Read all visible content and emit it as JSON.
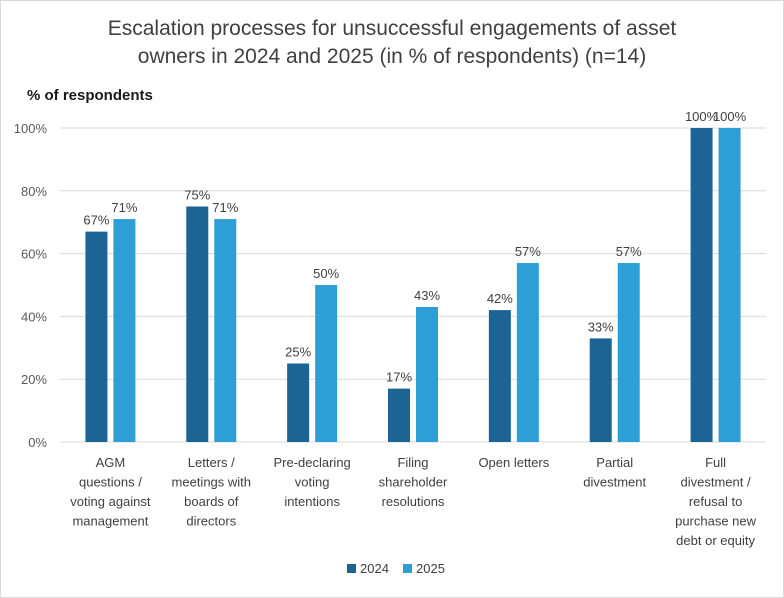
{
  "chart_data": {
    "type": "bar",
    "title_lines": [
      "Escalation processes for unsuccessful engagements of asset",
      "owners in 2024 and 2025 (in % of respondents) (n=14)"
    ],
    "ylabel": "% of respondents",
    "ylim": [
      0,
      100
    ],
    "yticks": [
      "0%",
      "20%",
      "40%",
      "60%",
      "80%",
      "100%"
    ],
    "categories": [
      [
        "AGM",
        "questions /",
        "voting against",
        "management"
      ],
      [
        "Letters /",
        "meetings with",
        "boards of",
        "directors"
      ],
      [
        "Pre-declaring",
        "voting",
        "intentions"
      ],
      [
        "Filing",
        "shareholder",
        "resolutions"
      ],
      [
        "Open letters"
      ],
      [
        "Partial",
        "divestment"
      ],
      [
        "Full",
        "divestment /",
        "refusal to",
        "purchase new",
        "debt or equity"
      ]
    ],
    "series": [
      {
        "name": "2024",
        "color": "#1b6494",
        "values": [
          67,
          75,
          25,
          17,
          42,
          33,
          100
        ],
        "labels": [
          "67%",
          "75%",
          "25%",
          "17%",
          "42%",
          "33%",
          "100%"
        ]
      },
      {
        "name": "2025",
        "color": "#2e9fd6",
        "values": [
          71,
          71,
          50,
          43,
          57,
          57,
          100
        ],
        "labels": [
          "71%",
          "71%",
          "50%",
          "43%",
          "57%",
          "57%",
          "100%"
        ]
      }
    ],
    "grid": true,
    "legend": "bottom"
  }
}
